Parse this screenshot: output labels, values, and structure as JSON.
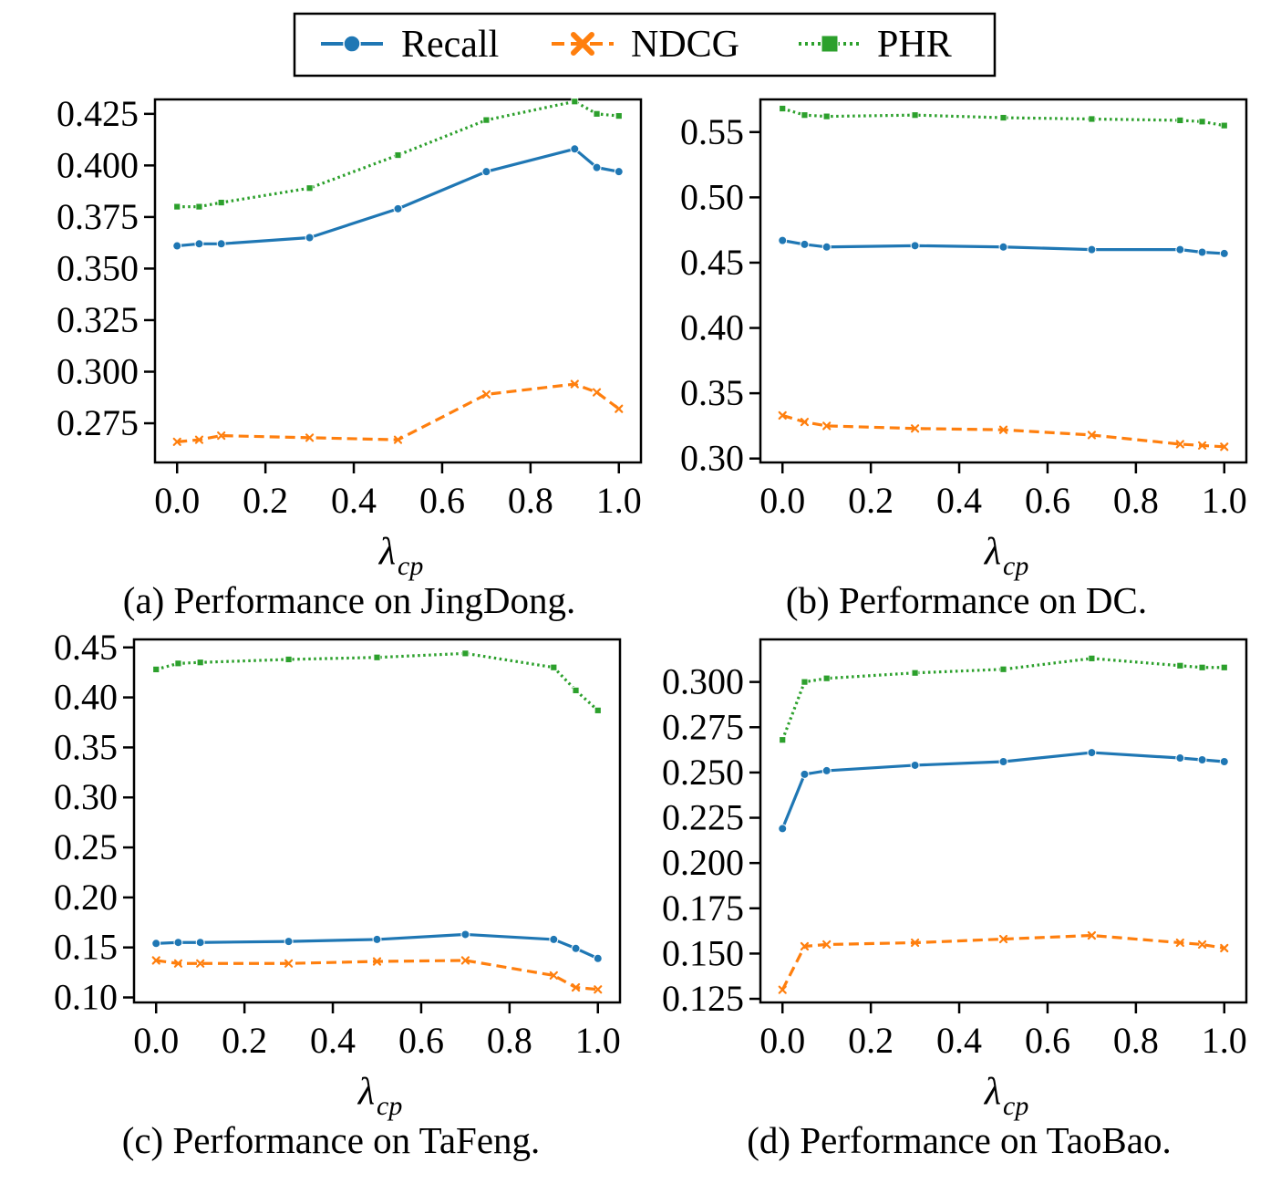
{
  "legend": {
    "entries": [
      {
        "name": "Recall",
        "color": "#1f77b4",
        "dash": "solid",
        "marker": "circle"
      },
      {
        "name": "NDCG",
        "color": "#ff7f0e",
        "dash": "dashed",
        "marker": "x"
      },
      {
        "name": "PHR",
        "color": "#2ca02c",
        "dash": "dotted",
        "marker": "square"
      }
    ]
  },
  "chart_data": [
    {
      "type": "line",
      "title": "(a) Performance on JingDong.",
      "xlabel": "λ",
      "xlabel_sub": "cp",
      "xlim": [
        -0.05,
        1.05
      ],
      "ylim": [
        0.256,
        0.432
      ],
      "xticks": [
        0.0,
        0.2,
        0.4,
        0.6,
        0.8,
        1.0
      ],
      "xtick_labels": [
        "0.0",
        "0.2",
        "0.4",
        "0.6",
        "0.8",
        "1.0"
      ],
      "yticks": [
        0.275,
        0.3,
        0.325,
        0.35,
        0.375,
        0.4,
        0.425
      ],
      "ytick_labels": [
        "0.275",
        "0.300",
        "0.325",
        "0.350",
        "0.375",
        "0.400",
        "0.425"
      ],
      "x": [
        0.0,
        0.05,
        0.1,
        0.3,
        0.5,
        0.7,
        0.9,
        0.95,
        1.0
      ],
      "series": [
        {
          "name": "Recall",
          "values": [
            0.361,
            0.362,
            0.362,
            0.365,
            0.379,
            0.397,
            0.408,
            0.399,
            0.397
          ]
        },
        {
          "name": "NDCG",
          "values": [
            0.266,
            0.267,
            0.269,
            0.268,
            0.267,
            0.289,
            0.294,
            0.29,
            0.282
          ]
        },
        {
          "name": "PHR",
          "values": [
            0.38,
            0.38,
            0.382,
            0.389,
            0.405,
            0.422,
            0.431,
            0.425,
            0.424
          ]
        }
      ]
    },
    {
      "type": "line",
      "title": "(b) Performance on DC.",
      "xlabel": "λ",
      "xlabel_sub": "cp",
      "xlim": [
        -0.05,
        1.05
      ],
      "ylim": [
        0.297,
        0.575
      ],
      "xticks": [
        0.0,
        0.2,
        0.4,
        0.6,
        0.8,
        1.0
      ],
      "xtick_labels": [
        "0.0",
        "0.2",
        "0.4",
        "0.6",
        "0.8",
        "1.0"
      ],
      "yticks": [
        0.3,
        0.35,
        0.4,
        0.45,
        0.5,
        0.55
      ],
      "ytick_labels": [
        "0.30",
        "0.35",
        "0.40",
        "0.45",
        "0.50",
        "0.55"
      ],
      "x": [
        0.0,
        0.05,
        0.1,
        0.3,
        0.5,
        0.7,
        0.9,
        0.95,
        1.0
      ],
      "series": [
        {
          "name": "Recall",
          "values": [
            0.467,
            0.464,
            0.462,
            0.463,
            0.462,
            0.46,
            0.46,
            0.458,
            0.457
          ]
        },
        {
          "name": "NDCG",
          "values": [
            0.333,
            0.328,
            0.325,
            0.323,
            0.322,
            0.318,
            0.311,
            0.31,
            0.309
          ]
        },
        {
          "name": "PHR",
          "values": [
            0.568,
            0.563,
            0.562,
            0.563,
            0.561,
            0.56,
            0.559,
            0.558,
            0.555
          ]
        }
      ]
    },
    {
      "type": "line",
      "title": "(c) Performance on TaFeng.",
      "xlabel": "λ",
      "xlabel_sub": "cp",
      "xlim": [
        -0.05,
        1.05
      ],
      "ylim": [
        0.095,
        0.458
      ],
      "xticks": [
        0.0,
        0.2,
        0.4,
        0.6,
        0.8,
        1.0
      ],
      "xtick_labels": [
        "0.0",
        "0.2",
        "0.4",
        "0.6",
        "0.8",
        "1.0"
      ],
      "yticks": [
        0.1,
        0.15,
        0.2,
        0.25,
        0.3,
        0.35,
        0.4,
        0.45
      ],
      "ytick_labels": [
        "0.10",
        "0.15",
        "0.20",
        "0.25",
        "0.30",
        "0.35",
        "0.40",
        "0.45"
      ],
      "x": [
        0.0,
        0.05,
        0.1,
        0.3,
        0.5,
        0.7,
        0.9,
        0.95,
        1.0
      ],
      "series": [
        {
          "name": "Recall",
          "values": [
            0.154,
            0.155,
            0.155,
            0.156,
            0.158,
            0.163,
            0.158,
            0.149,
            0.139
          ]
        },
        {
          "name": "NDCG",
          "values": [
            0.137,
            0.134,
            0.134,
            0.134,
            0.136,
            0.137,
            0.122,
            0.11,
            0.108
          ]
        },
        {
          "name": "PHR",
          "values": [
            0.428,
            0.434,
            0.435,
            0.438,
            0.44,
            0.444,
            0.43,
            0.407,
            0.387
          ]
        }
      ]
    },
    {
      "type": "line",
      "title": "(d) Performance on TaoBao.",
      "xlabel": "λ",
      "xlabel_sub": "cp",
      "xlim": [
        -0.05,
        1.05
      ],
      "ylim": [
        0.123,
        0.3235
      ],
      "xticks": [
        0.0,
        0.2,
        0.4,
        0.6,
        0.8,
        1.0
      ],
      "xtick_labels": [
        "0.0",
        "0.2",
        "0.4",
        "0.6",
        "0.8",
        "1.0"
      ],
      "yticks": [
        0.125,
        0.15,
        0.175,
        0.2,
        0.225,
        0.25,
        0.275,
        0.3
      ],
      "ytick_labels": [
        "0.125",
        "0.150",
        "0.175",
        "0.200",
        "0.225",
        "0.250",
        "0.275",
        "0.300"
      ],
      "x": [
        0.0,
        0.05,
        0.1,
        0.3,
        0.5,
        0.7,
        0.9,
        0.95,
        1.0
      ],
      "series": [
        {
          "name": "Recall",
          "values": [
            0.219,
            0.249,
            0.251,
            0.254,
            0.256,
            0.261,
            0.258,
            0.257,
            0.256
          ]
        },
        {
          "name": "NDCG",
          "values": [
            0.13,
            0.154,
            0.155,
            0.156,
            0.158,
            0.16,
            0.156,
            0.155,
            0.153
          ]
        },
        {
          "name": "PHR",
          "values": [
            0.268,
            0.3,
            0.302,
            0.305,
            0.307,
            0.313,
            0.309,
            0.308,
            0.308
          ]
        }
      ]
    }
  ]
}
